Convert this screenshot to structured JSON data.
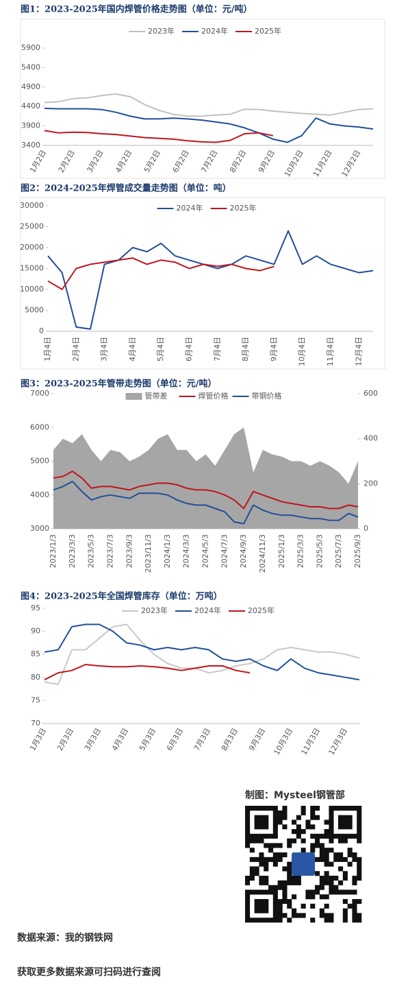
{
  "chart_data": [
    {
      "type": "line",
      "title": "图1：2023-2025年国内焊管价格走势图（单位：元/吨）",
      "categories": [
        "1月2日",
        null,
        "2月2日",
        null,
        "3月2日",
        null,
        "4月2日",
        null,
        "5月2日",
        null,
        "6月2日",
        null,
        "7月2日",
        null,
        "8月2日",
        null,
        "9月2日",
        null,
        "10月2日",
        null,
        "11月2日",
        null,
        "12月2日",
        null
      ],
      "series": [
        {
          "name": "2023年",
          "color": "#c0c0c0",
          "values": [
            4500,
            4520,
            4600,
            4620,
            4680,
            4720,
            4650,
            4450,
            4300,
            4200,
            4150,
            4150,
            4180,
            4200,
            4330,
            4320,
            4280,
            4250,
            4220,
            4200,
            4180,
            4250,
            4320,
            4340
          ]
        },
        {
          "name": "2024年",
          "color": "#1f4e9a",
          "values": [
            4350,
            4340,
            4340,
            4340,
            4320,
            4250,
            4150,
            4080,
            4080,
            4100,
            4080,
            4050,
            4000,
            3950,
            3850,
            3720,
            3560,
            3480,
            3650,
            4100,
            3950,
            3900,
            3870,
            3820
          ]
        },
        {
          "name": "2025年",
          "color": "#c0141c",
          "values": [
            3780,
            3720,
            3740,
            3730,
            3700,
            3680,
            3640,
            3600,
            3580,
            3560,
            3520,
            3490,
            3480,
            3530,
            3700,
            3720,
            3650,
            null,
            null,
            null,
            null,
            null,
            null,
            null
          ]
        }
      ],
      "ylim": [
        3400,
        5900
      ],
      "yticks": [
        3400,
        3900,
        4400,
        4900,
        5400,
        5900
      ]
    },
    {
      "type": "line",
      "title": "图2：2024-2025年焊管成交量走势图（单位：吨）",
      "categories": [
        "1月4日",
        null,
        "2月4日",
        null,
        "3月4日",
        null,
        "4月4日",
        null,
        "5月4日",
        null,
        "6月4日",
        null,
        "7月4日",
        null,
        "8月4日",
        null,
        "9月4日",
        null,
        "10月4日",
        null,
        "11月4日",
        null,
        "12月4日",
        null
      ],
      "series": [
        {
          "name": "2024年",
          "color": "#1f4e9a",
          "values": [
            18000,
            14000,
            1000,
            500,
            16000,
            17000,
            20000,
            19000,
            21000,
            18000,
            17000,
            16000,
            15000,
            16000,
            18000,
            17000,
            16000,
            24000,
            16000,
            18000,
            16000,
            15000,
            14000,
            14500
          ]
        },
        {
          "name": "2025年",
          "color": "#c0141c",
          "values": [
            12000,
            10000,
            15000,
            16000,
            16500,
            17000,
            17500,
            16000,
            17000,
            16500,
            15000,
            16000,
            15500,
            16000,
            15000,
            14500,
            15500,
            null,
            null,
            null,
            null,
            null,
            null,
            null
          ]
        }
      ],
      "ylim": [
        0,
        30000
      ],
      "yticks": [
        0,
        5000,
        10000,
        15000,
        20000,
        25000,
        30000
      ]
    },
    {
      "type": "line",
      "title": "图3：2023-2025年管带走势图（单位：元/吨）",
      "categories": [
        "2023/1/3",
        null,
        "2023/3/3",
        null,
        "2023/5/3",
        null,
        "2023/7/3",
        null,
        "2023/9/3",
        null,
        "2023/11/3",
        null,
        "2024/1/3",
        null,
        "2024/3/3",
        null,
        "2024/5/3",
        null,
        "2024/7/3",
        null,
        "2024/9/3",
        null,
        "2024/11/3",
        null,
        "2025/1/3",
        null,
        "2025/3/3",
        null,
        "2025/5/3",
        null,
        "2025/7/3",
        null,
        "2025/9/3"
      ],
      "series": [
        {
          "name": "管带差",
          "color": "#a6a6a6",
          "kind": "area",
          "axis": "y2",
          "values": [
            350,
            400,
            380,
            420,
            350,
            300,
            350,
            340,
            300,
            320,
            350,
            400,
            420,
            350,
            350,
            300,
            330,
            280,
            350,
            420,
            450,
            250,
            350,
            330,
            320,
            300,
            300,
            280,
            300,
            280,
            250,
            200,
            300
          ]
        },
        {
          "name": "焊管价格",
          "color": "#c0141c",
          "values": [
            4500,
            4550,
            4700,
            4500,
            4200,
            4250,
            4250,
            4200,
            4150,
            4250,
            4300,
            4350,
            4350,
            4300,
            4200,
            4150,
            4150,
            4100,
            4000,
            3850,
            3600,
            4100,
            4000,
            3900,
            3800,
            3750,
            3700,
            3650,
            3650,
            3600,
            3600,
            3700,
            3650
          ]
        },
        {
          "name": "带钢价格",
          "color": "#1f4e9a",
          "values": [
            4150,
            4250,
            4400,
            4100,
            3850,
            3950,
            4000,
            3950,
            3900,
            4050,
            4050,
            4050,
            4000,
            3850,
            3750,
            3700,
            3700,
            3600,
            3500,
            3200,
            3150,
            3700,
            3550,
            3450,
            3400,
            3400,
            3350,
            3300,
            3300,
            3250,
            3250,
            3450,
            3350
          ]
        }
      ],
      "ylim": [
        3000,
        7000
      ],
      "yticks": [
        3000,
        4000,
        5000,
        6000,
        7000
      ],
      "y2lim": [
        0,
        600
      ],
      "y2ticks": [
        0,
        200,
        400,
        600
      ]
    },
    {
      "type": "line",
      "title": "图4：2023-2025年全国焊管库存（单位：万吨）",
      "categories": [
        "1月3日",
        null,
        "2月3日",
        null,
        "3月3日",
        null,
        "4月3日",
        null,
        "5月3日",
        null,
        "6月3日",
        null,
        "7月3日",
        null,
        "8月3日",
        null,
        "9月3日",
        null,
        "10月3日",
        null,
        "11月3日",
        null,
        "12月3日",
        null
      ],
      "series": [
        {
          "name": "2023年",
          "color": "#c8c8c8",
          "values": [
            79,
            78.5,
            86,
            86,
            88.5,
            91,
            91.5,
            88,
            85,
            83,
            82,
            82,
            81,
            81.5,
            82.5,
            83,
            84,
            86,
            86.5,
            86,
            85.5,
            85.5,
            85,
            84.2
          ]
        },
        {
          "name": "2024年",
          "color": "#1f4e9a",
          "values": [
            85.5,
            86,
            91,
            91.5,
            91.5,
            90,
            87.5,
            87,
            86,
            86.5,
            86,
            86.5,
            86,
            84,
            83.5,
            84,
            82.5,
            81.5,
            84,
            82,
            81,
            80.5,
            80,
            79.5
          ]
        },
        {
          "name": "2025年",
          "color": "#c0141c",
          "values": [
            79.5,
            81,
            81.5,
            82.8,
            82.5,
            82.3,
            82.3,
            82.5,
            82.3,
            82,
            81.5,
            82,
            82.5,
            82.5,
            81.5,
            81,
            null,
            null,
            null,
            null,
            null,
            null,
            null,
            null
          ]
        }
      ],
      "ylim": [
        70,
        95
      ],
      "yticks": [
        70,
        75,
        80,
        85,
        90,
        95
      ]
    }
  ],
  "footer": {
    "credit": "制图：Mysteel钢管部",
    "source": "数据来源：我的钢铁网",
    "note": "获取更多数据来源可扫码进行查阅"
  }
}
